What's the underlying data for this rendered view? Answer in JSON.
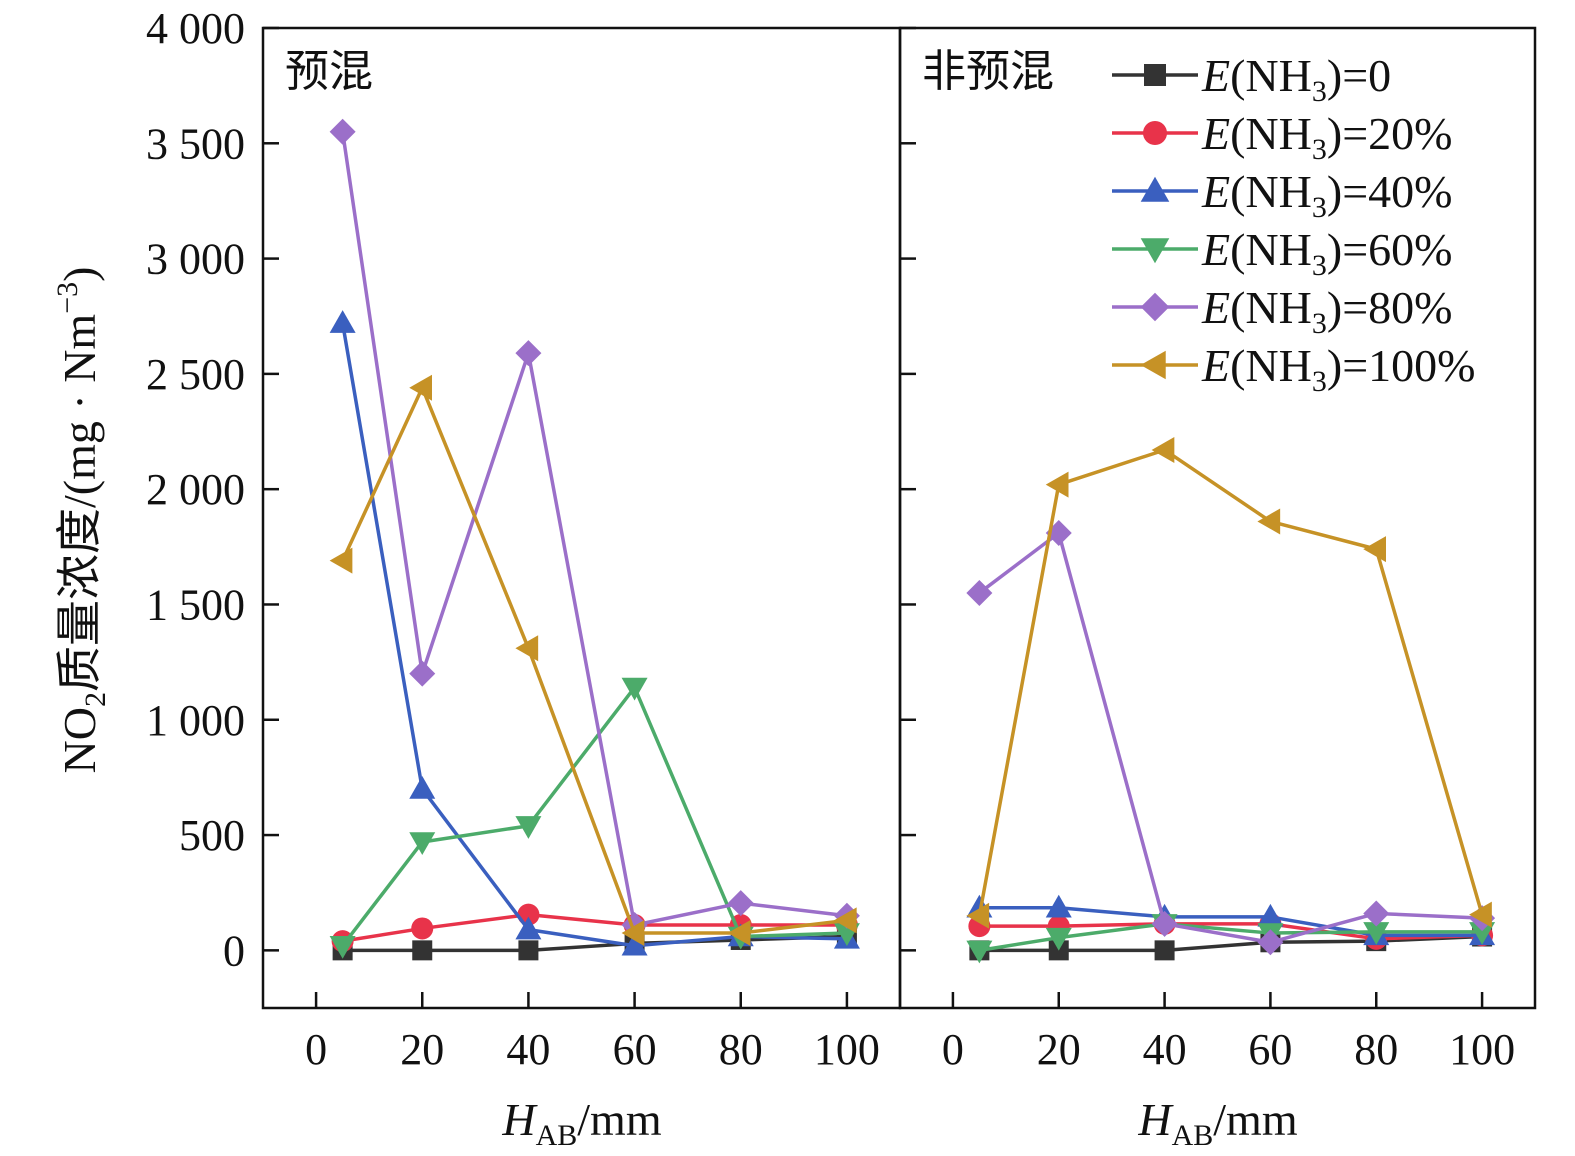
{
  "chart_data": [
    {
      "type": "line",
      "panel_title": "预混",
      "xlabel": "H_AB/mm",
      "ylabel": "NO2质量浓度/(mg·Nm−3)",
      "xlim": [
        -10,
        110
      ],
      "ylim": [
        -250,
        4000
      ],
      "x_ticks": [
        "0",
        "20",
        "40",
        "60",
        "80",
        "100"
      ],
      "y_ticks": [
        "0",
        "500",
        "1 000",
        "1 500",
        "2 000",
        "2 500",
        "3 000",
        "3 500",
        "4 000"
      ],
      "x": [
        5,
        20,
        40,
        60,
        80,
        100
      ],
      "series": [
        {
          "name": "E(NH3)=0",
          "color": "#333333",
          "marker": "square",
          "values": [
            0,
            0,
            0,
            30,
            45,
            60
          ]
        },
        {
          "name": "E(NH3)=20%",
          "color": "#e8334a",
          "marker": "circle",
          "values": [
            40,
            95,
            155,
            110,
            110,
            110
          ]
        },
        {
          "name": "E(NH3)=40%",
          "color": "#3a5fbf",
          "marker": "triangle-up",
          "values": [
            2720,
            700,
            90,
            20,
            60,
            50
          ]
        },
        {
          "name": "E(NH3)=60%",
          "color": "#4cab6a",
          "marker": "triangle-down",
          "values": [
            20,
            470,
            540,
            1140,
            60,
            75
          ]
        },
        {
          "name": "E(NH3)=80%",
          "color": "#9b6fc9",
          "marker": "diamond",
          "values": [
            3550,
            1200,
            2590,
            110,
            205,
            150
          ]
        },
        {
          "name": "E(NH3)=100%",
          "color": "#c69226",
          "marker": "triangle-left",
          "values": [
            1690,
            2440,
            1310,
            75,
            75,
            130
          ]
        }
      ]
    },
    {
      "type": "line",
      "panel_title": "非预混",
      "xlabel": "H_AB/mm",
      "xlim": [
        -10,
        110
      ],
      "ylim": [
        -250,
        4000
      ],
      "x_ticks": [
        "0",
        "20",
        "40",
        "60",
        "80",
        "100"
      ],
      "x": [
        5,
        20,
        40,
        60,
        80,
        100
      ],
      "series": [
        {
          "name": "E(NH3)=0",
          "color": "#333333",
          "marker": "square",
          "values": [
            0,
            0,
            0,
            35,
            40,
            60
          ]
        },
        {
          "name": "E(NH3)=20%",
          "color": "#e8334a",
          "marker": "circle",
          "values": [
            105,
            105,
            115,
            115,
            50,
            65
          ]
        },
        {
          "name": "E(NH3)=40%",
          "color": "#3a5fbf",
          "marker": "triangle-up",
          "values": [
            185,
            185,
            145,
            145,
            65,
            65
          ]
        },
        {
          "name": "E(NH3)=60%",
          "color": "#4cab6a",
          "marker": "triangle-down",
          "values": [
            0,
            55,
            115,
            75,
            80,
            80
          ]
        },
        {
          "name": "E(NH3)=80%",
          "color": "#9b6fc9",
          "marker": "diamond",
          "values": [
            1550,
            1810,
            115,
            35,
            160,
            140
          ]
        },
        {
          "name": "E(NH3)=100%",
          "color": "#c69226",
          "marker": "triangle-left",
          "values": [
            150,
            2020,
            2170,
            1860,
            1740,
            155
          ]
        }
      ]
    }
  ],
  "axis_title_y": {
    "main": "NO",
    "sub": "2",
    "rest": "质量浓度/(mg · Nm",
    "sup": "−3",
    "end": ")"
  },
  "axis_title_x": {
    "main": "H",
    "sub": "AB",
    "rest": "/mm"
  },
  "legend": [
    {
      "prefix": "E",
      "mid": "(NH",
      "sub": "3",
      "suffix": ")=0"
    },
    {
      "prefix": "E",
      "mid": "(NH",
      "sub": "3",
      "suffix": ")=20%"
    },
    {
      "prefix": "E",
      "mid": "(NH",
      "sub": "3",
      "suffix": ")=40%"
    },
    {
      "prefix": "E",
      "mid": "(NH",
      "sub": "3",
      "suffix": ")=60%"
    },
    {
      "prefix": "E",
      "mid": "(NH",
      "sub": "3",
      "suffix": ")=80%"
    },
    {
      "prefix": "E",
      "mid": "(NH",
      "sub": "3",
      "suffix": ")=100%"
    }
  ]
}
